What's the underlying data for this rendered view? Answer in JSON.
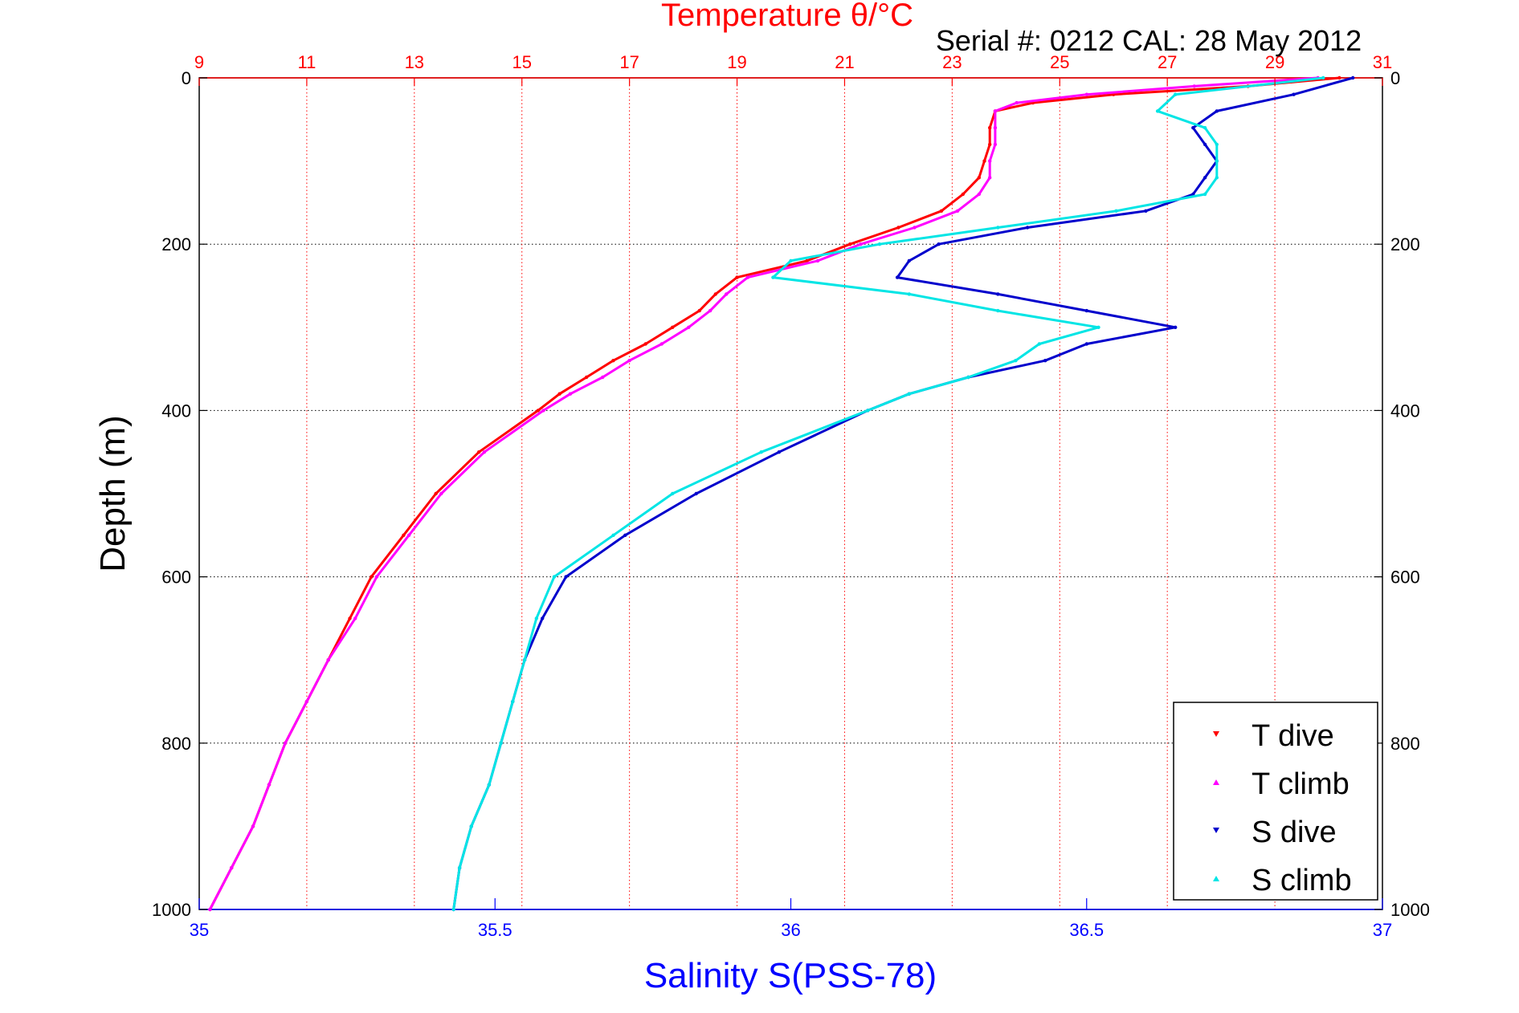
{
  "chart_data": {
    "type": "scatter",
    "title": "Temperature θ/°C",
    "subtitle": "Serial #: 0212  CAL: 28 May 2012",
    "ylabel": "Depth (m)",
    "xlabel_bottom": "Salinity S(PSS-78)",
    "ylim": [
      0,
      1000
    ],
    "y_inverted": true,
    "x_top": {
      "label": "Temperature θ/°C",
      "range": [
        9,
        31
      ],
      "ticks": [
        "9",
        "11",
        "13",
        "15",
        "17",
        "19",
        "21",
        "23",
        "25",
        "27",
        "29",
        "31"
      ]
    },
    "x_bottom": {
      "label": "Salinity S(PSS-78)",
      "range": [
        35,
        37
      ],
      "ticks": [
        "35",
        "35.5",
        "36",
        "36.5",
        "37"
      ]
    },
    "y_ticks": [
      "0",
      "200",
      "400",
      "600",
      "800",
      "1000"
    ],
    "grid": true,
    "legend_position": "bottom-right",
    "colors": {
      "temp_axis": "#ff0000",
      "sal_axis": "#0000ff",
      "t_dive": "#ff0000",
      "t_climb": "#ff00ff",
      "s_dive": "#0000cc",
      "s_climb": "#00e5e5"
    },
    "series": [
      {
        "name": "T dive",
        "axis": "temperature",
        "depth": [
          0,
          10,
          20,
          30,
          40,
          60,
          80,
          100,
          120,
          140,
          160,
          180,
          200,
          220,
          240,
          260,
          280,
          300,
          320,
          340,
          360,
          380,
          400,
          450,
          500,
          550,
          600,
          650,
          700,
          750,
          800,
          850,
          900,
          950,
          1000
        ],
        "values": [
          30.2,
          28.5,
          26.0,
          24.5,
          23.8,
          23.7,
          23.7,
          23.6,
          23.5,
          23.2,
          22.8,
          22.0,
          21.1,
          20.3,
          19.0,
          18.6,
          18.3,
          17.8,
          17.3,
          16.7,
          16.2,
          15.7,
          15.3,
          14.2,
          13.4,
          12.8,
          12.2,
          11.8,
          11.4,
          11.0,
          10.6,
          10.3,
          10.0,
          9.6,
          9.2
        ]
      },
      {
        "name": "T climb",
        "axis": "temperature",
        "depth": [
          0,
          10,
          20,
          30,
          40,
          60,
          80,
          100,
          120,
          140,
          160,
          180,
          200,
          220,
          240,
          260,
          280,
          300,
          320,
          340,
          360,
          380,
          400,
          450,
          500,
          550,
          600,
          650,
          700,
          750,
          800,
          850,
          900,
          950,
          1000
        ],
        "values": [
          29.8,
          27.5,
          25.5,
          24.2,
          23.8,
          23.8,
          23.8,
          23.7,
          23.7,
          23.5,
          23.1,
          22.3,
          21.3,
          20.5,
          19.2,
          18.8,
          18.5,
          18.1,
          17.6,
          17.0,
          16.5,
          15.9,
          15.4,
          14.3,
          13.5,
          12.9,
          12.3,
          11.9,
          11.4,
          11.0,
          10.6,
          10.3,
          10.0,
          9.6,
          9.2
        ]
      },
      {
        "name": "S dive",
        "axis": "salinity",
        "depth": [
          0,
          20,
          40,
          60,
          80,
          100,
          120,
          140,
          160,
          180,
          200,
          220,
          240,
          260,
          280,
          300,
          320,
          340,
          360,
          380,
          400,
          450,
          500,
          550,
          600,
          650,
          700,
          750,
          800,
          850,
          900,
          950,
          1000
        ],
        "values": [
          36.95,
          36.85,
          36.72,
          36.68,
          36.7,
          36.72,
          36.7,
          36.68,
          36.6,
          36.4,
          36.25,
          36.2,
          36.18,
          36.35,
          36.5,
          36.65,
          36.5,
          36.43,
          36.3,
          36.2,
          36.13,
          35.98,
          35.84,
          35.72,
          35.62,
          35.58,
          35.55,
          35.53,
          35.51,
          35.49,
          35.46,
          35.44,
          35.43
        ]
      },
      {
        "name": "S climb",
        "axis": "salinity",
        "depth": [
          0,
          20,
          40,
          60,
          80,
          100,
          120,
          140,
          160,
          180,
          200,
          220,
          240,
          260,
          280,
          300,
          320,
          340,
          360,
          380,
          400,
          450,
          500,
          550,
          600,
          650,
          700,
          750,
          800,
          850,
          900,
          950,
          1000
        ],
        "values": [
          36.9,
          36.65,
          36.62,
          36.7,
          36.72,
          36.72,
          36.72,
          36.7,
          36.55,
          36.35,
          36.15,
          36.0,
          35.97,
          36.2,
          36.35,
          36.52,
          36.42,
          36.38,
          36.3,
          36.2,
          36.13,
          35.95,
          35.8,
          35.7,
          35.6,
          35.57,
          35.55,
          35.53,
          35.51,
          35.49,
          35.46,
          35.44,
          35.43
        ]
      }
    ]
  }
}
